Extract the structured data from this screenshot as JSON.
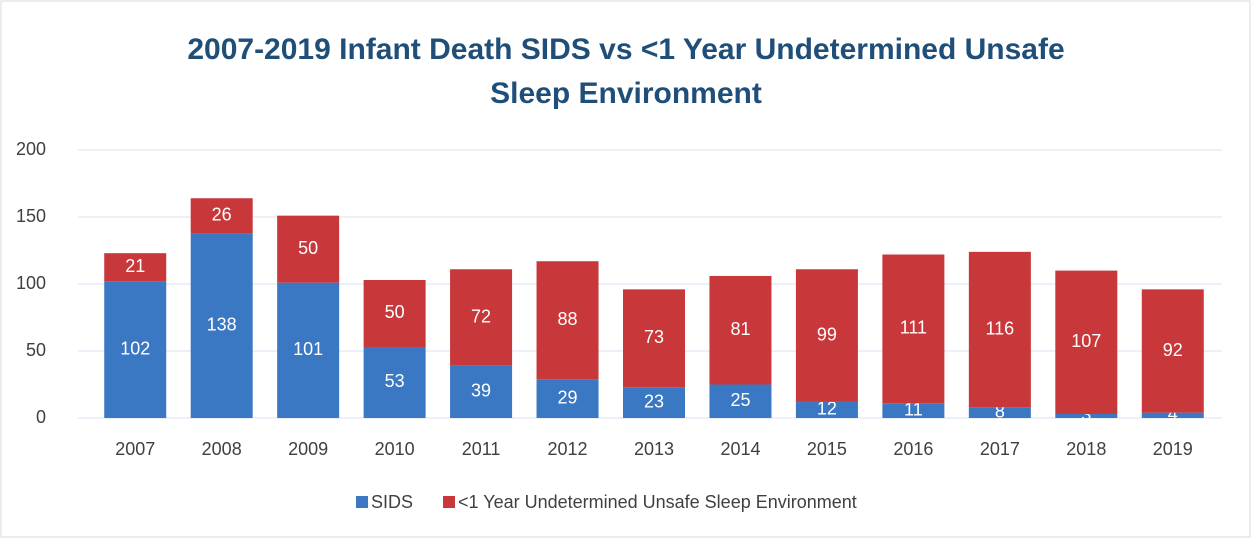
{
  "chart_data": {
    "type": "stacked_bar",
    "title": "2007-2019 Infant Death SIDS vs <1 Year Undetermined Unsafe Sleep Environment",
    "categories": [
      "2007",
      "2008",
      "2009",
      "2010",
      "2011",
      "2012",
      "2013",
      "2014",
      "2015",
      "2016",
      "2017",
      "2018",
      "2019"
    ],
    "series": [
      {
        "name": "SIDS",
        "color": "#3b78c3",
        "values": [
          102,
          138,
          101,
          53,
          39,
          29,
          23,
          25,
          12,
          11,
          8,
          3,
          4
        ]
      },
      {
        "name": "<1 Year Undetermined Unsafe Sleep Environment",
        "color": "#c8373a",
        "values": [
          21,
          26,
          50,
          50,
          72,
          88,
          73,
          81,
          99,
          111,
          116,
          107,
          92
        ]
      }
    ],
    "ylim": [
      0,
      200
    ],
    "yticks": [
      0,
      50,
      100,
      150,
      200
    ],
    "grid": true,
    "legend": "bottom"
  }
}
